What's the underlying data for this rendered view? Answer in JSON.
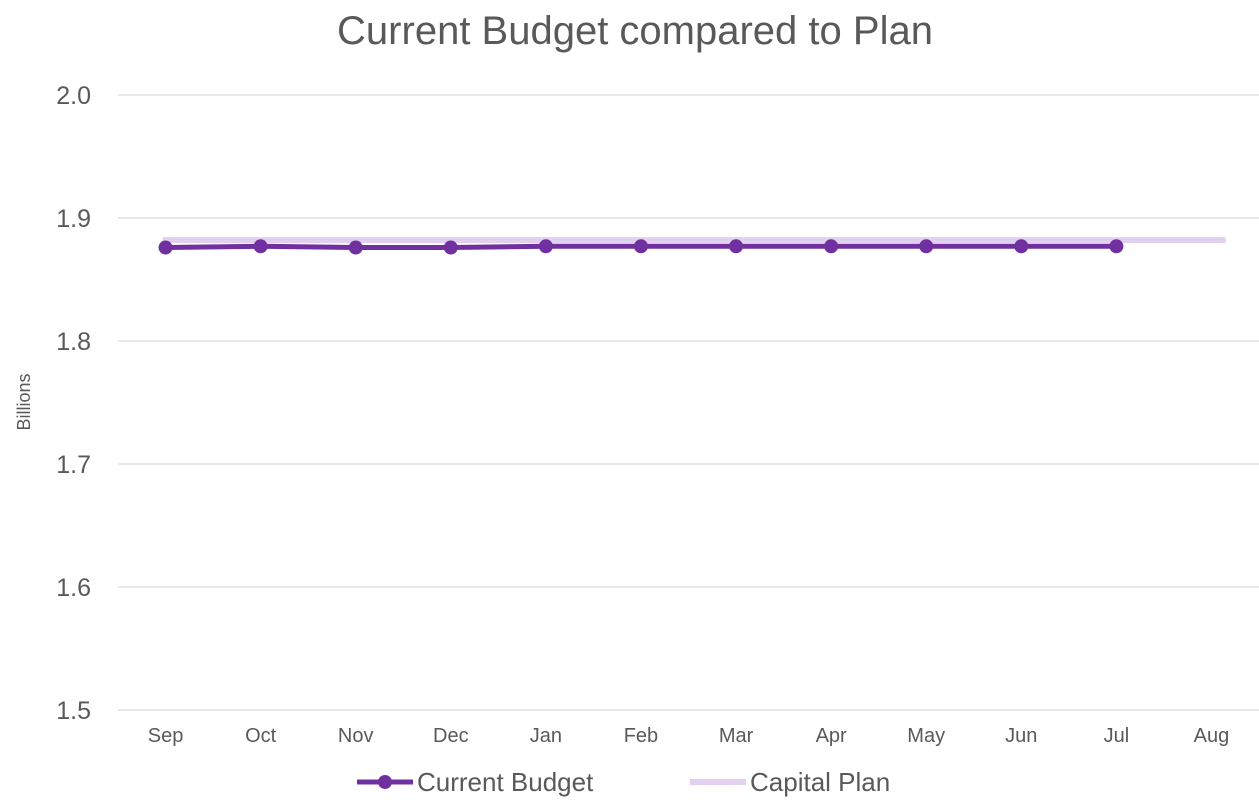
{
  "chart_data": {
    "type": "line",
    "title": "Current Budget compared to Plan",
    "xlabel": "",
    "ylabel": "Billions",
    "categories": [
      "Sep",
      "Oct",
      "Nov",
      "Dec",
      "Jan",
      "Feb",
      "Mar",
      "Apr",
      "May",
      "Jun",
      "Jul",
      "Aug"
    ],
    "ylim": [
      1.5,
      2.0
    ],
    "yticks": [
      "1.5",
      "1.6",
      "1.7",
      "1.8",
      "1.9",
      "2.0"
    ],
    "grid": true,
    "legend_position": "bottom",
    "series": [
      {
        "name": "Current Budget",
        "color": "#7030a0",
        "markers": true,
        "values": [
          1.876,
          1.877,
          1.876,
          1.876,
          1.877,
          1.877,
          1.877,
          1.877,
          1.877,
          1.877,
          1.877,
          null
        ]
      },
      {
        "name": "Capital Plan",
        "color": "#e1d0ef",
        "markers": false,
        "values": [
          1.882,
          1.882,
          1.882,
          1.882,
          1.882,
          1.882,
          1.882,
          1.882,
          1.882,
          1.882,
          1.882,
          1.882
        ]
      }
    ]
  }
}
